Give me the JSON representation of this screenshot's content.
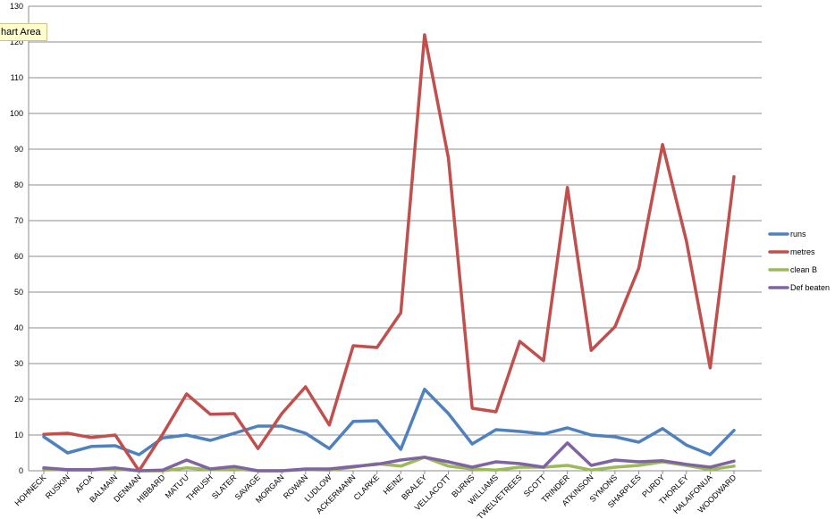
{
  "tooltip": {
    "text": "hart Area"
  },
  "chart_data": {
    "type": "line",
    "categories": [
      "HOHNECK",
      "RUSKIN",
      "AFOA",
      "BALMAIN",
      "DENMAN",
      "HIBBARD",
      "MATU'U",
      "THRUSH",
      "SLATER",
      "SAVAGE",
      "MORGAN",
      "ROWAN",
      "LUDLOW",
      "ACKERMANN",
      "CLARKE",
      "HEINZ",
      "BRALEY",
      "VELLACOTT",
      "BURNS",
      "WILLIAMS",
      "TWELVETREES",
      "SCOTT",
      "TRINDER",
      "ATKINSON",
      "SYMONS",
      "SHARPLES",
      "PURDY",
      "THORLEY",
      "HALAIFONUA",
      "WOODWARD"
    ],
    "series": [
      {
        "name": "runs",
        "color": "#4f81bd",
        "values": [
          9.5,
          5,
          6.8,
          7,
          4.5,
          9.2,
          10,
          8.5,
          10.5,
          12.5,
          12.5,
          10.5,
          6.2,
          13.8,
          14,
          6,
          22.8,
          16,
          7.5,
          11.5,
          11,
          10.3,
          12,
          10,
          9.5,
          8,
          11.8,
          7.2,
          4.5,
          11.3
        ]
      },
      {
        "name": "metres",
        "color": "#c0504d",
        "values": [
          10.2,
          10.5,
          9.3,
          10,
          0,
          10.3,
          21.5,
          15.8,
          16,
          6.2,
          16,
          23.5,
          12.8,
          35,
          34.5,
          44.2,
          122,
          87.5,
          17.5,
          16.5,
          36.2,
          30.8,
          79.3,
          33.7,
          40.3,
          56.7,
          91.3,
          64.3,
          28.8,
          82.3
        ]
      },
      {
        "name": "clean B",
        "color": "#9bbb59",
        "values": [
          0.5,
          0.2,
          0.2,
          0.5,
          0,
          0,
          0.8,
          0.3,
          0.5,
          0,
          0,
          0.3,
          0.2,
          1,
          2,
          1.3,
          3.8,
          1.3,
          0.5,
          0.2,
          1,
          1,
          1.5,
          0.2,
          1,
          1.5,
          2.5,
          1.5,
          0.3,
          1.3
        ]
      },
      {
        "name": "Def beaten",
        "color": "#8064a2",
        "values": [
          0.8,
          0.3,
          0.3,
          0.8,
          0,
          0.2,
          3,
          0.5,
          1.2,
          0,
          0,
          0.5,
          0.5,
          1.2,
          1.8,
          3,
          3.8,
          2.5,
          1,
          2.5,
          2,
          1,
          7.8,
          1.5,
          3,
          2.5,
          2.8,
          1.8,
          1,
          2.7
        ]
      }
    ],
    "ylim": [
      0,
      130
    ],
    "yticks": [
      0,
      10,
      20,
      30,
      40,
      50,
      60,
      70,
      80,
      90,
      100,
      110,
      120,
      130
    ],
    "grid": true,
    "legend": "right"
  }
}
